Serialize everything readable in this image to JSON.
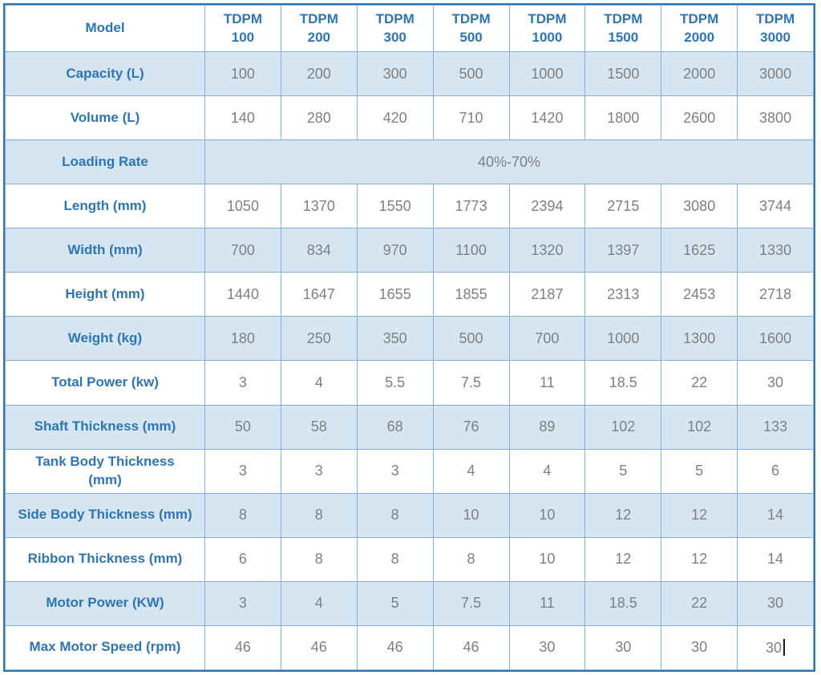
{
  "colors": {
    "label_text": "#2E75B6",
    "value_text": "#7F7F7F",
    "alt_row_bg": "#D5E5F2",
    "row_bg": "#FFFFFF",
    "grid_border": "#85AFD6",
    "outer_border": "#2E75B6"
  },
  "table": {
    "corner_label": "Model",
    "columns": [
      {
        "series": "TDPM",
        "size": "100"
      },
      {
        "series": "TDPM",
        "size": "200"
      },
      {
        "series": "TDPM",
        "size": "300"
      },
      {
        "series": "TDPM",
        "size": "500"
      },
      {
        "series": "TDPM",
        "size": "1000"
      },
      {
        "series": "TDPM",
        "size": "1500"
      },
      {
        "series": "TDPM",
        "size": "2000"
      },
      {
        "series": "TDPM",
        "size": "3000"
      }
    ],
    "rows": [
      {
        "label": "Capacity (L)",
        "values": [
          "100",
          "200",
          "300",
          "500",
          "1000",
          "1500",
          "2000",
          "3000"
        ]
      },
      {
        "label": "Volume (L)",
        "values": [
          "140",
          "280",
          "420",
          "710",
          "1420",
          "1800",
          "2600",
          "3800"
        ]
      },
      {
        "label": "Loading Rate",
        "merged_value": "40%-70%"
      },
      {
        "label": "Length (mm)",
        "values": [
          "1050",
          "1370",
          "1550",
          "1773",
          "2394",
          "2715",
          "3080",
          "3744"
        ]
      },
      {
        "label": "Width (mm)",
        "values": [
          "700",
          "834",
          "970",
          "1100",
          "1320",
          "1397",
          "1625",
          "1330"
        ]
      },
      {
        "label": "Height (mm)",
        "values": [
          "1440",
          "1647",
          "1655",
          "1855",
          "2187",
          "2313",
          "2453",
          "2718"
        ]
      },
      {
        "label": "Weight (kg)",
        "values": [
          "180",
          "250",
          "350",
          "500",
          "700",
          "1000",
          "1300",
          "1600"
        ]
      },
      {
        "label": "Total Power (kw)",
        "values": [
          "3",
          "4",
          "5.5",
          "7.5",
          "11",
          "18.5",
          "22",
          "30"
        ]
      },
      {
        "label": "Shaft Thickness (mm)",
        "values": [
          "50",
          "58",
          "68",
          "76",
          "89",
          "102",
          "102",
          "133"
        ]
      },
      {
        "label": "Tank Body Thickness\n(mm)",
        "values": [
          "3",
          "3",
          "3",
          "4",
          "4",
          "5",
          "5",
          "6"
        ]
      },
      {
        "label": "Side Body Thickness (mm)",
        "values": [
          "8",
          "8",
          "8",
          "10",
          "10",
          "12",
          "12",
          "14"
        ]
      },
      {
        "label": "Ribbon Thickness (mm)",
        "values": [
          "6",
          "8",
          "8",
          "8",
          "10",
          "12",
          "12",
          "14"
        ]
      },
      {
        "label": "Motor Power (KW)",
        "values": [
          "3",
          "4",
          "5",
          "7.5",
          "11",
          "18.5",
          "22",
          "30"
        ]
      },
      {
        "label": "Max Motor Speed (rpm)",
        "values": [
          "46",
          "46",
          "46",
          "46",
          "30",
          "30",
          "30",
          "30"
        ],
        "has_caret": true
      }
    ]
  }
}
